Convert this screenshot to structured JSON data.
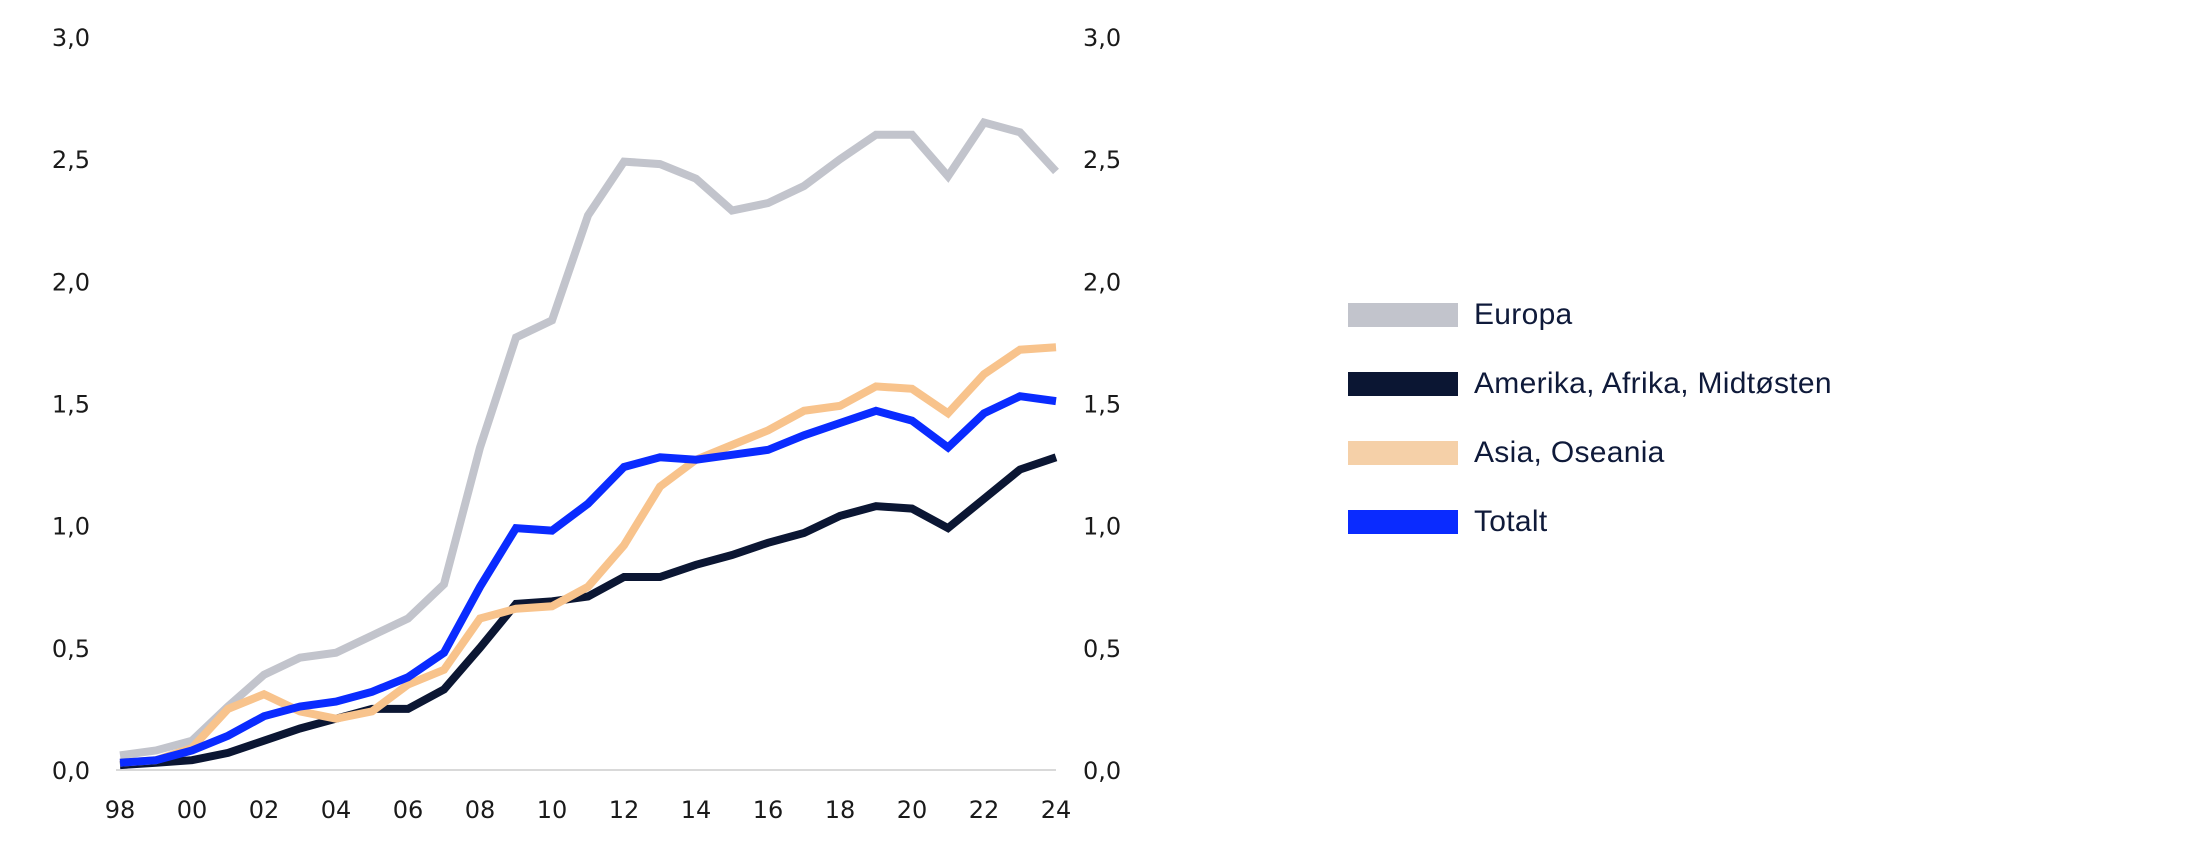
{
  "chart_data": {
    "type": "line",
    "title": "",
    "xlabel": "",
    "ylabel": "",
    "x": [
      "98",
      "99",
      "00",
      "01",
      "02",
      "03",
      "04",
      "05",
      "06",
      "07",
      "08",
      "09",
      "10",
      "11",
      "12",
      "13",
      "14",
      "15",
      "16",
      "17",
      "18",
      "19",
      "20",
      "21",
      "22",
      "23",
      "24"
    ],
    "x_tick_labels": [
      "98",
      "00",
      "02",
      "04",
      "06",
      "08",
      "10",
      "12",
      "14",
      "16",
      "18",
      "20",
      "22",
      "24"
    ],
    "y_tick_labels": [
      "0,0",
      "0,5",
      "1,0",
      "1,5",
      "2,0",
      "2,5",
      "3,0"
    ],
    "y_ticks": [
      0,
      0.5,
      1.0,
      1.5,
      2.0,
      2.5,
      3.0
    ],
    "ylim": [
      0,
      3.0
    ],
    "secondary_y_axis": true,
    "grid": false,
    "legend_position": "right",
    "series": [
      {
        "name": "Europa",
        "color": "#c2c4cc",
        "values": [
          0.06,
          0.08,
          0.12,
          0.26,
          0.39,
          0.46,
          0.48,
          0.55,
          0.62,
          0.76,
          1.32,
          1.77,
          1.84,
          2.27,
          2.49,
          2.48,
          2.42,
          2.29,
          2.32,
          2.39,
          2.5,
          2.6,
          2.6,
          2.43,
          2.65,
          2.61,
          2.45
        ]
      },
      {
        "name": "Amerika, Afrika, Midtøsten",
        "color": "#0b1633",
        "values": [
          0.02,
          0.03,
          0.04,
          0.07,
          0.12,
          0.17,
          0.21,
          0.25,
          0.25,
          0.33,
          0.5,
          0.68,
          0.69,
          0.71,
          0.79,
          0.79,
          0.84,
          0.88,
          0.93,
          0.97,
          1.04,
          1.08,
          1.07,
          0.99,
          1.11,
          1.23,
          1.28
        ]
      },
      {
        "name": "Asia, Oseania",
        "color": "#f8c38c",
        "legend_color": "#f5d0a8",
        "values": [
          0.03,
          0.04,
          0.09,
          0.25,
          0.31,
          0.24,
          0.21,
          0.24,
          0.35,
          0.41,
          0.62,
          0.66,
          0.67,
          0.75,
          0.92,
          1.16,
          1.27,
          1.33,
          1.39,
          1.47,
          1.49,
          1.57,
          1.56,
          1.46,
          1.62,
          1.72,
          1.73
        ]
      },
      {
        "name": "Totalt",
        "color": "#0a2bff",
        "values": [
          0.03,
          0.04,
          0.08,
          0.14,
          0.22,
          0.26,
          0.28,
          0.32,
          0.38,
          0.48,
          0.75,
          0.99,
          0.98,
          1.09,
          1.24,
          1.28,
          1.27,
          1.29,
          1.31,
          1.37,
          1.42,
          1.47,
          1.43,
          1.32,
          1.46,
          1.53,
          1.51
        ]
      }
    ]
  }
}
